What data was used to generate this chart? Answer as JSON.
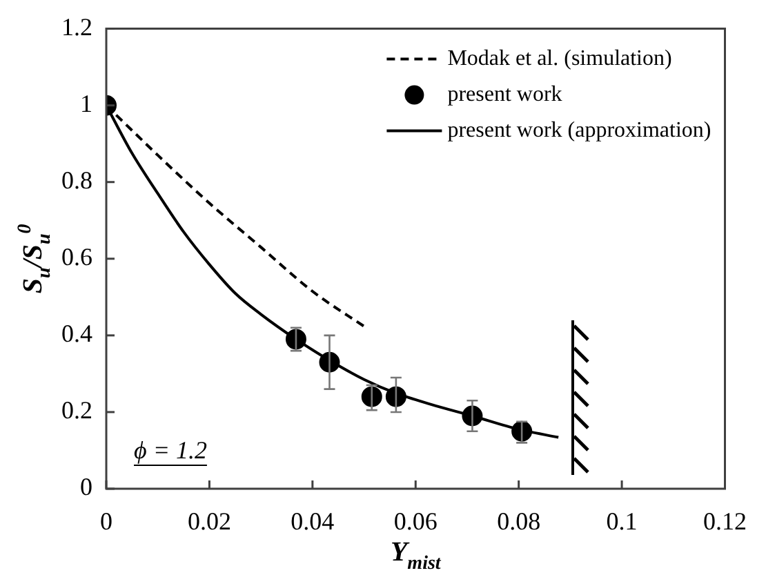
{
  "chart_data": {
    "type": "line",
    "xlabel": "Y$_{mist}$",
    "ylabel": "S$_{u}$/S$_{u}$$^{0}$",
    "annotations": [
      "ϕ = 1.2"
    ],
    "xlim": [
      0,
      0.12
    ],
    "xticks": [
      0,
      0.02,
      0.04,
      0.06,
      0.08,
      0.1,
      0.12
    ],
    "ylim": [
      0,
      1.2
    ],
    "yticks": [
      0,
      0.2,
      0.4,
      0.6,
      0.8,
      1,
      1.2
    ],
    "grid": false,
    "legend": "top right",
    "series": [
      {
        "name": "Modak et al. (simulation)",
        "type": "line",
        "color": "#000000",
        "line_style": "dashed",
        "marker": "none",
        "x": [
          0,
          0.01,
          0.02,
          0.03,
          0.04,
          0.0503
        ],
        "values": [
          1,
          0.87,
          0.745,
          0.63,
          0.515,
          0.421
        ]
      },
      {
        "name": "present work",
        "type": "scatter",
        "color": "#000000",
        "marker": "circle",
        "x": [
          0,
          0.0368,
          0.0433,
          0.0515,
          0.0562,
          0.071,
          0.0806
        ],
        "values": [
          1,
          0.39,
          0.33,
          0.24,
          0.24,
          0.19,
          0.15
        ],
        "errors": [
          null,
          [
            0.36,
            0.42
          ],
          [
            0.26,
            0.4
          ],
          [
            0.205,
            0.27
          ],
          [
            0.2,
            0.29
          ],
          [
            0.15,
            0.23
          ],
          [
            0.12,
            0.175
          ]
        ]
      },
      {
        "name": "present work (approximation)",
        "type": "line",
        "color": "#000000",
        "line_style": "solid",
        "marker": "none",
        "x": [
          0,
          0.005,
          0.01,
          0.015,
          0.02,
          0.025,
          0.03,
          0.0368,
          0.0433,
          0.05,
          0.056,
          0.063,
          0.071,
          0.08,
          0.0877
        ],
        "values": [
          1,
          0.875,
          0.77,
          0.67,
          0.585,
          0.51,
          0.455,
          0.39,
          0.335,
          0.285,
          0.25,
          0.22,
          0.19,
          0.155,
          0.134
        ]
      }
    ]
  }
}
